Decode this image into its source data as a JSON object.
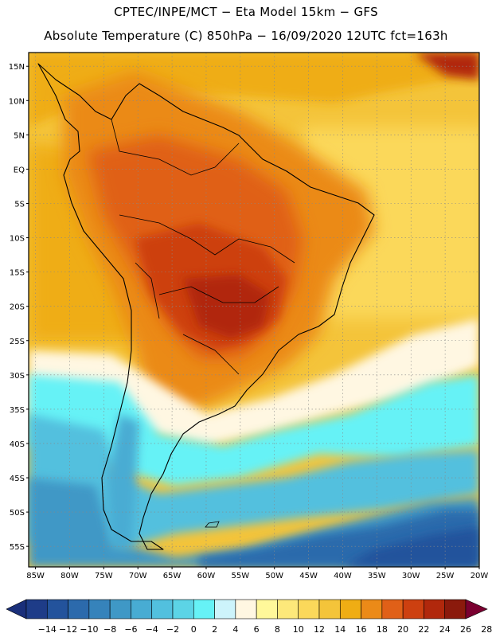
{
  "header": {
    "line1": "CPTEC/INPE/MCT −  Eta Model 15km − GFS",
    "line2": "Absolute Temperature (C) 850hPa − 16/09/2020 12UTC fct=163h"
  },
  "map": {
    "lat_labels": [
      "15N",
      "10N",
      "5N",
      "EQ",
      "5S",
      "10S",
      "15S",
      "20S",
      "25S",
      "30S",
      "35S",
      "40S",
      "45S",
      "50S",
      "55S"
    ],
    "lon_labels": [
      "85W",
      "80W",
      "75W",
      "70W",
      "65W",
      "60W",
      "55W",
      "50W",
      "45W",
      "40W",
      "35W",
      "30W",
      "25W",
      "20W"
    ],
    "lon_range": [
      -86,
      -20
    ],
    "lat_range": [
      -58,
      17
    ]
  },
  "colorbar": {
    "labels": [
      "-14",
      "-12",
      "-10",
      "-8",
      "-6",
      "-4",
      "-2",
      "0",
      "2",
      "4",
      "6",
      "8",
      "10",
      "12",
      "14",
      "16",
      "18",
      "20",
      "22",
      "24",
      "26",
      "28"
    ],
    "colors": [
      "#1e3c88",
      "#23539c",
      "#2c6aac",
      "#3683bb",
      "#3f98c6",
      "#48acd3",
      "#52c0de",
      "#5cd4e6",
      "#66f2f6",
      "#cdf4fb",
      "#fff7e2",
      "#fff89a",
      "#fde87a",
      "#fbd85a",
      "#f4c43a",
      "#efad14",
      "#eb8a18",
      "#e06018",
      "#cd4010",
      "#b1280c",
      "#8b1a0c"
    ],
    "low_color": "#1a2f7a",
    "high_color": "#7a0030"
  }
}
